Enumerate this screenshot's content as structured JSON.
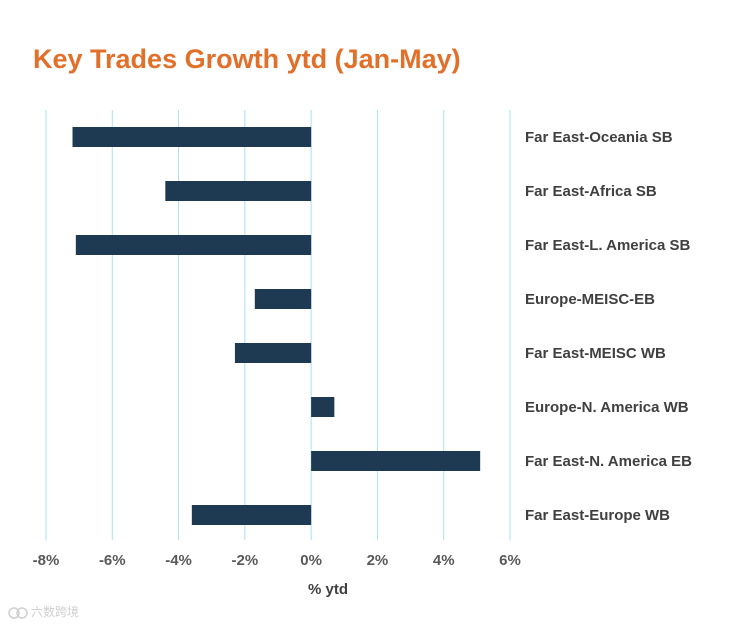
{
  "chart_data": {
    "type": "bar",
    "orientation": "horizontal",
    "title": "Key Trades Growth ytd (Jan-May)",
    "xlabel": "% ytd",
    "ylabel": "",
    "xlim": [
      -8,
      6
    ],
    "x_ticks": [
      -8,
      -6,
      -4,
      -2,
      0,
      2,
      4,
      6
    ],
    "x_tick_labels": [
      "-8%",
      "-6%",
      "-4%",
      "-2%",
      "0%",
      "2%",
      "4%",
      "6%"
    ],
    "grid": "vertical",
    "categories": [
      "Far East-Oceania SB",
      "Far East-Africa SB",
      "Far East-L. America SB",
      "Europe-MEISC-EB",
      "Far East-MEISC WB",
      "Europe-N. America WB",
      "Far East-N. America EB",
      "Far East-Europe WB"
    ],
    "values": [
      -7.2,
      -4.4,
      -7.1,
      -1.7,
      -2.3,
      0.7,
      5.1,
      -3.6
    ],
    "bar_color": "#1e3a52",
    "grid_color": "#a9dff2"
  },
  "watermark": {
    "text": "六数跨境"
  }
}
